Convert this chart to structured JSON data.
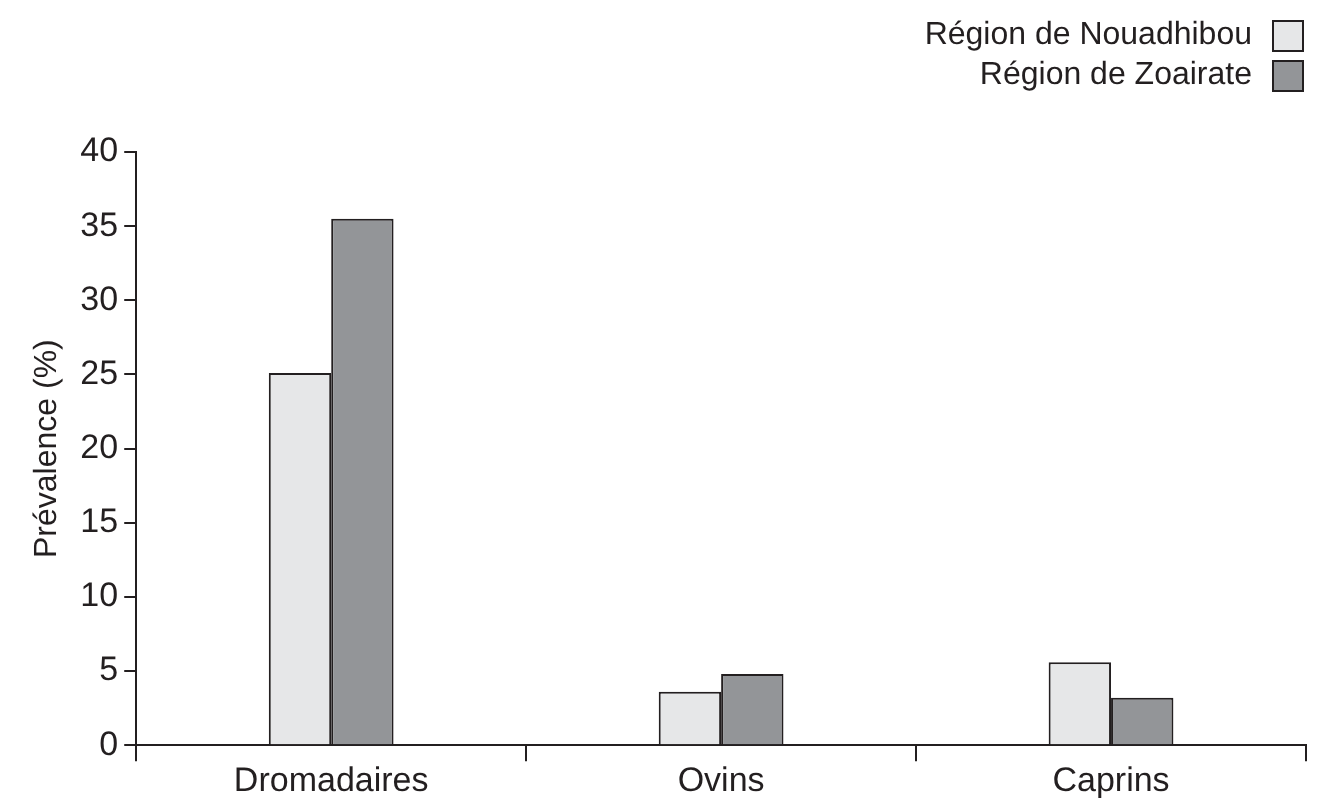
{
  "chart_data": {
    "type": "bar",
    "ylabel": "Prévalence (%)",
    "categories": [
      "Dromadaires",
      "Ovins",
      "Caprins"
    ],
    "series": [
      {
        "name": "Région de Nouadhibou",
        "color": "#e6e7e8",
        "values": [
          25.1,
          3.6,
          5.6
        ]
      },
      {
        "name": "Région de Zoairate",
        "color": "#939598",
        "values": [
          35.5,
          4.8,
          3.2
        ]
      }
    ],
    "ylim": [
      0,
      40
    ],
    "yticks": [
      0,
      5,
      10,
      15,
      20,
      25,
      30,
      35,
      40
    ],
    "grid": false,
    "legend": "top right"
  }
}
